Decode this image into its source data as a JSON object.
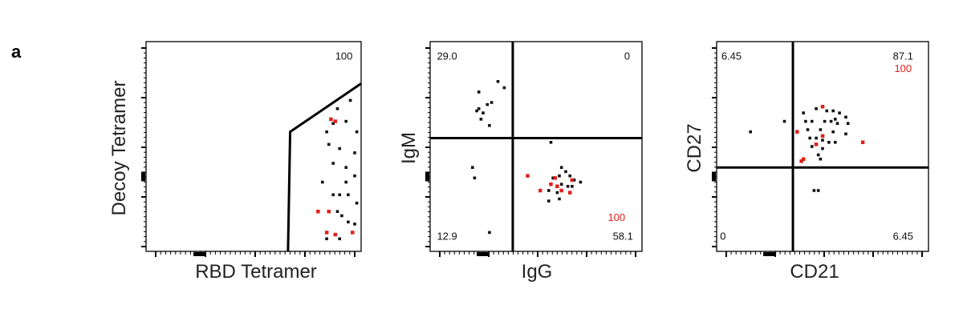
{
  "figure": {
    "panel_letter": "a"
  },
  "colors": {
    "black_points": "#111111",
    "red_points": "#e0201b",
    "frame": "#000000"
  },
  "chart_data": [
    {
      "type": "scatter",
      "xlabel": "RBD Tetramer",
      "ylabel": "Decoy Tetramer",
      "xlim": [
        0,
        100
      ],
      "ylim": [
        0,
        100
      ],
      "grid": false,
      "gate": {
        "type": "polygon",
        "points": [
          [
            66,
            0
          ],
          [
            67,
            57
          ],
          [
            100,
            80
          ]
        ]
      },
      "annotations": [
        {
          "text": "100",
          "color": "black",
          "x": 92,
          "y": 93
        }
      ],
      "series": [
        {
          "color": "black",
          "points": [
            [
              95,
              72
            ],
            [
              89,
              68
            ],
            [
              87,
              61
            ],
            [
              93,
              62
            ],
            [
              98,
              57
            ],
            [
              84,
              57
            ],
            [
              85,
              51
            ],
            [
              90,
              49
            ],
            [
              97,
              47
            ],
            [
              87,
              42
            ],
            [
              93,
              40
            ],
            [
              97,
              36
            ],
            [
              82,
              33
            ],
            [
              93,
              33
            ],
            [
              87,
              27
            ],
            [
              90,
              27
            ],
            [
              94,
              27
            ],
            [
              98,
              23
            ],
            [
              89,
              19
            ],
            [
              91,
              17
            ],
            [
              94,
              14
            ],
            [
              97,
              13
            ],
            [
              84,
              9
            ],
            [
              90,
              6
            ],
            [
              84,
              6
            ]
          ]
        },
        {
          "color": "red",
          "points": [
            [
              86,
              63
            ],
            [
              88,
              62
            ],
            [
              80,
              19
            ],
            [
              85,
              19
            ],
            [
              84,
              9
            ],
            [
              96,
              9
            ],
            [
              88,
              8
            ]
          ]
        }
      ]
    },
    {
      "type": "scatter",
      "xlabel": "IgG",
      "ylabel": "IgM",
      "xlim": [
        0,
        100
      ],
      "ylim": [
        0,
        100
      ],
      "grid": false,
      "quadrant_lines": {
        "x": 39,
        "y": 54
      },
      "annotations": [
        {
          "text": "29.0",
          "color": "black",
          "x": 8,
          "y": 93
        },
        {
          "text": "0",
          "color": "black",
          "x": 93,
          "y": 93
        },
        {
          "text": "12.9",
          "color": "black",
          "x": 8,
          "y": 7
        },
        {
          "text": "58.1",
          "color": "black",
          "x": 91,
          "y": 7
        },
        {
          "text": "100",
          "color": "red",
          "x": 88,
          "y": 16
        }
      ],
      "series": [
        {
          "color": "black",
          "points": [
            [
              32,
              81
            ],
            [
              35,
              78
            ],
            [
              23,
              76
            ],
            [
              29,
              71
            ],
            [
              27,
              70
            ],
            [
              23,
              68
            ],
            [
              25,
              66
            ],
            [
              22,
              67
            ],
            [
              24,
              63
            ],
            [
              28,
              60
            ],
            [
              57,
              52
            ],
            [
              20,
              40
            ],
            [
              62,
              40
            ],
            [
              64,
              38
            ],
            [
              61,
              36
            ],
            [
              66,
              36
            ],
            [
              58,
              35
            ],
            [
              68,
              34
            ],
            [
              71,
              33
            ],
            [
              62,
              32
            ],
            [
              65,
              31
            ],
            [
              67,
              31
            ],
            [
              56,
              29
            ],
            [
              60,
              28
            ],
            [
              61,
              25
            ],
            [
              56,
              24
            ],
            [
              21,
              35
            ],
            [
              28,
              9
            ]
          ]
        },
        {
          "color": "red",
          "points": [
            [
              46,
              36
            ],
            [
              59,
              35
            ],
            [
              67,
              34
            ],
            [
              57,
              32
            ],
            [
              60,
              31
            ],
            [
              62,
              29
            ],
            [
              52,
              29
            ],
            [
              66,
              28
            ]
          ]
        }
      ]
    },
    {
      "type": "scatter",
      "xlabel": "CD21",
      "ylabel": "CD27",
      "xlim": [
        0,
        100
      ],
      "ylim": [
        0,
        100
      ],
      "grid": false,
      "quadrant_lines": {
        "x": 36,
        "y": 40
      },
      "annotations": [
        {
          "text": "6.45",
          "color": "black",
          "x": 7,
          "y": 93
        },
        {
          "text": "87.1",
          "color": "black",
          "x": 88,
          "y": 93
        },
        {
          "text": "100",
          "color": "red",
          "x": 88,
          "y": 87
        },
        {
          "text": "0",
          "color": "black",
          "x": 3,
          "y": 7
        },
        {
          "text": "6.45",
          "color": "black",
          "x": 88,
          "y": 7
        }
      ],
      "series": [
        {
          "color": "black",
          "points": [
            [
              41,
              66
            ],
            [
              47,
              68
            ],
            [
              52,
              67
            ],
            [
              55,
              67
            ],
            [
              58,
              66
            ],
            [
              61,
              64
            ],
            [
              56,
              63
            ],
            [
              42,
              62
            ],
            [
              45,
              62
            ],
            [
              51,
              62
            ],
            [
              54,
              62
            ],
            [
              57,
              61
            ],
            [
              62,
              61
            ],
            [
              32,
              62
            ],
            [
              43,
              58
            ],
            [
              49,
              58
            ],
            [
              55,
              57
            ],
            [
              61,
              56
            ],
            [
              16,
              57
            ],
            [
              44,
              54
            ],
            [
              47,
              54
            ],
            [
              50,
              53
            ],
            [
              53,
              52
            ],
            [
              56,
              52
            ],
            [
              45,
              50
            ],
            [
              50,
              49
            ],
            [
              48,
              46
            ],
            [
              49,
              44
            ],
            [
              46,
              29
            ],
            [
              48,
              29
            ]
          ]
        },
        {
          "color": "red",
          "points": [
            [
              50,
              69
            ],
            [
              38,
              57
            ],
            [
              50,
              55
            ],
            [
              69,
              52
            ],
            [
              47,
              51
            ],
            [
              41,
              44
            ],
            [
              40,
              43
            ]
          ]
        }
      ]
    }
  ]
}
